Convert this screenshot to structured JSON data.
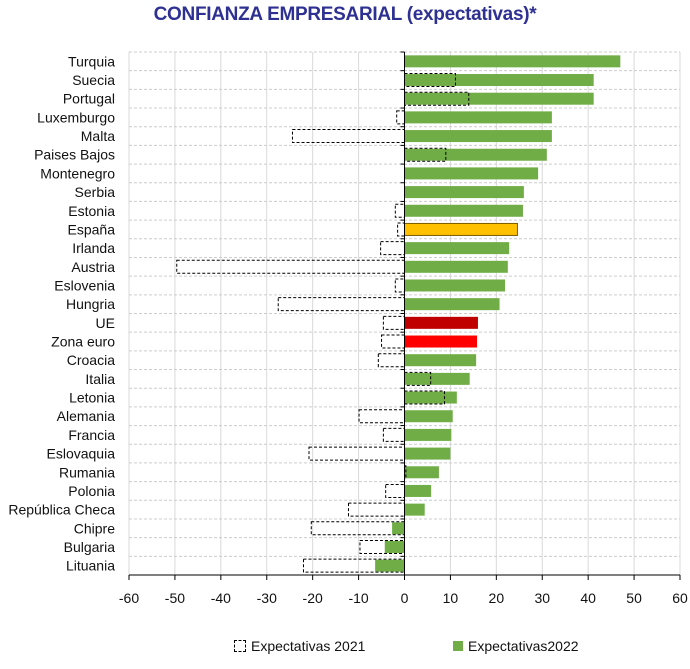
{
  "chart_data": {
    "type": "bar",
    "orientation": "horizontal",
    "title": "CONFIANZA EMPRESARIAL (expectativas)*",
    "xlim": [
      -60,
      60
    ],
    "xticks": [
      -60,
      -50,
      -40,
      -30,
      -20,
      -10,
      0,
      10,
      20,
      30,
      40,
      50,
      60
    ],
    "grid": true,
    "legend_position": "bottom",
    "categories": [
      "Turquia",
      "Suecia",
      "Portugal",
      "Luxemburgo",
      "Malta",
      "Paises Bajos",
      "Montenegro",
      "Serbia",
      "Estonia",
      "España",
      "Irlanda",
      "Austria",
      "Eslovenia",
      "Hungria",
      "UE",
      "Zona euro",
      "Croacia",
      "Italia",
      "Letonia",
      "Alemania",
      "Francia",
      "Eslovaquia",
      "Rumania",
      "Polonia",
      "República Checa",
      "Chipre",
      "Bulgaria",
      "Lituania"
    ],
    "series": [
      {
        "name": "Expectativas 2021",
        "style": "dashed-outline",
        "values": [
          null,
          11.1,
          14.0,
          -1.7,
          -24.4,
          9.0,
          null,
          null,
          -2.0,
          -1.5,
          -5.2,
          -49.6,
          -2.0,
          -27.5,
          -4.6,
          -5.0,
          -5.7,
          5.7,
          8.7,
          -9.9,
          -4.6,
          -20.8,
          0.3,
          -4.1,
          -12.2,
          -20.3,
          -9.7,
          -22.0
        ]
      },
      {
        "name": "Expectativas2022",
        "color": "#70AD47",
        "values": [
          47.0,
          41.2,
          41.2,
          32.1,
          32.1,
          31.0,
          29.1,
          26.0,
          25.8,
          24.6,
          22.8,
          22.5,
          21.9,
          20.7,
          16.0,
          15.8,
          15.6,
          14.2,
          11.4,
          10.5,
          10.2,
          10.0,
          7.5,
          5.8,
          4.4,
          -2.7,
          -4.3,
          -6.4
        ]
      }
    ],
    "highlight_colors": {
      "España": "#FFC000",
      "UE": "#C00000",
      "Zona euro": "#FF0000"
    }
  }
}
